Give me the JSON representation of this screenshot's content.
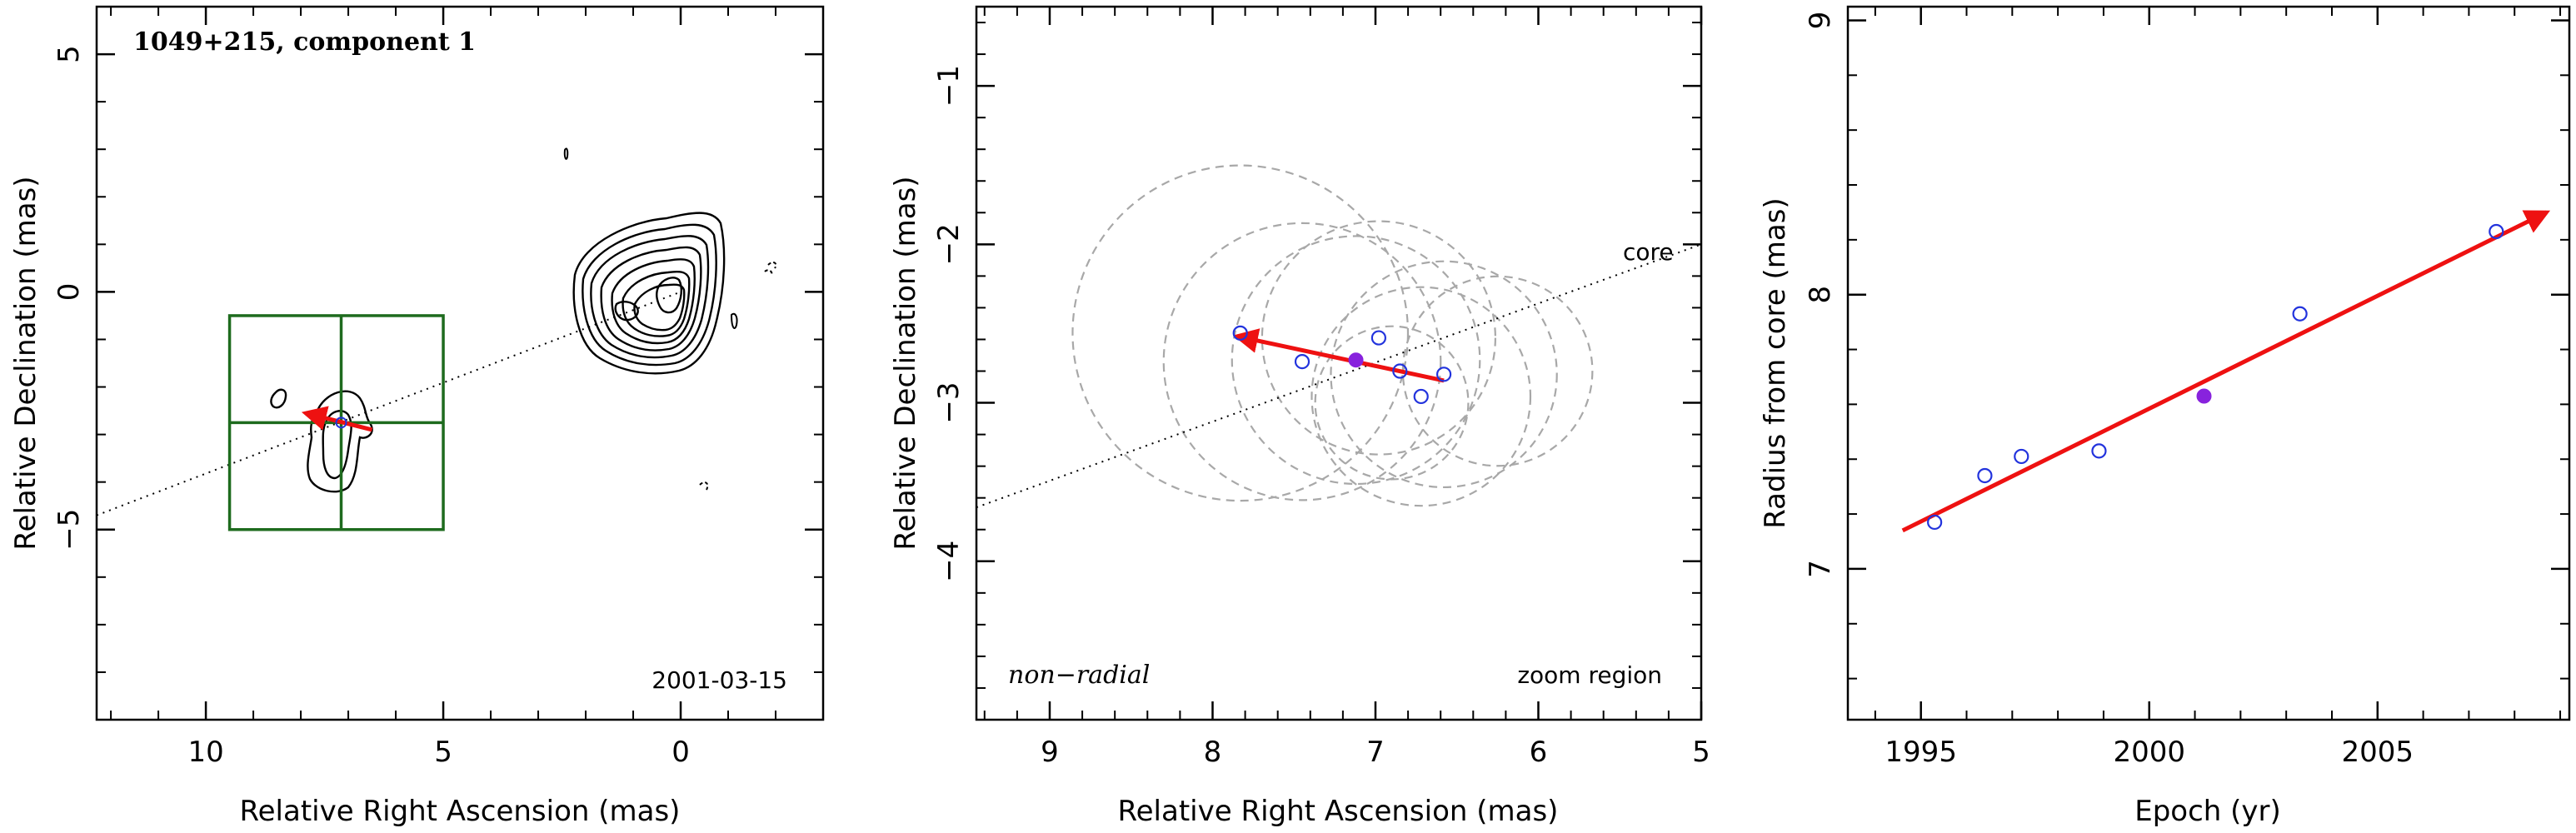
{
  "chart_data": [
    {
      "type": "contour-map",
      "title": "1049+215, component 1",
      "xlabel": "Relative Right Ascension (mas)",
      "ylabel": "Relative Declination (mas)",
      "xlim": [
        12.3,
        -3.0
      ],
      "ylim": [
        -9.0,
        6.0
      ],
      "xticks": [
        10,
        5,
        0
      ],
      "yticks": [
        5,
        0,
        -5
      ],
      "annotation": "2001-03-15",
      "direction_line": {
        "from": [
          12.3,
          -4.7
        ],
        "to": [
          0.0,
          0.0
        ]
      },
      "zoom_box": {
        "x": [
          9.5,
          5.0
        ],
        "y": [
          -5.0,
          -0.5
        ],
        "cross": [
          7.15,
          -2.75
        ]
      },
      "motion_arrow": {
        "from": [
          6.5,
          -2.9
        ],
        "to": [
          7.9,
          -2.55
        ]
      },
      "component_marker": [
        7.15,
        -2.75
      ],
      "colors": {
        "contour": "#000000",
        "box": "#1e6b1e",
        "arrow": "#ee1111"
      }
    },
    {
      "type": "scatter",
      "xlabel": "Relative Right Ascension (mas)",
      "ylabel": "Relative Declination (mas)",
      "xlim": [
        9.45,
        5.0
      ],
      "ylim": [
        -5.0,
        -0.5
      ],
      "xticks": [
        9,
        8,
        7,
        6,
        5
      ],
      "yticks": [
        -1,
        -2,
        -3,
        -4
      ],
      "label_left": "non−radial",
      "label_right": "zoom region",
      "core_label": "core",
      "points_open": [
        [
          7.83,
          -2.56
        ],
        [
          7.45,
          -2.74
        ],
        [
          6.98,
          -2.59
        ],
        [
          6.85,
          -2.8
        ],
        [
          6.72,
          -2.96
        ],
        [
          6.58,
          -2.82
        ]
      ],
      "point_filled": [
        7.12,
        -2.73
      ],
      "motion_arrow": {
        "from": [
          6.58,
          -2.86
        ],
        "to": [
          7.85,
          -2.58
        ]
      },
      "core_line": {
        "from": [
          9.45,
          -3.66
        ],
        "to": [
          5.0,
          -2.0
        ]
      },
      "error_circles": [
        {
          "cx": 7.83,
          "cy": -2.56,
          "r": 2.3
        },
        {
          "cx": 7.45,
          "cy": -2.74,
          "r": 1.9
        },
        {
          "cx": 6.98,
          "cy": -2.59,
          "r": 1.6
        },
        {
          "cx": 6.72,
          "cy": -2.96,
          "r": 1.5
        },
        {
          "cx": 6.58,
          "cy": -2.82,
          "r": 1.55
        },
        {
          "cx": 6.25,
          "cy": -2.8,
          "r": 1.3
        },
        {
          "cx": 6.9,
          "cy": -3.0,
          "r": 1.05
        },
        {
          "cx": 7.12,
          "cy": -2.73,
          "r": 1.7
        }
      ],
      "colors": {
        "open": "#2233dd",
        "filled": "#8822dd",
        "arrow": "#ee1111",
        "circles": "#a8a8a8"
      }
    },
    {
      "type": "scatter",
      "xlabel": "Epoch (yr)",
      "ylabel": "Radius from core (mas)",
      "xlim": [
        1993.4,
        2009.2
      ],
      "ylim": [
        6.45,
        9.05
      ],
      "xticks": [
        1995,
        2000,
        2005
      ],
      "yticks": [
        7,
        8,
        9
      ],
      "points_open": [
        [
          1995.3,
          7.17
        ],
        [
          1996.4,
          7.34
        ],
        [
          1997.2,
          7.41
        ],
        [
          1998.9,
          7.43
        ],
        [
          2003.3,
          7.93
        ],
        [
          2007.6,
          8.23
        ]
      ],
      "point_filled": [
        2001.2,
        7.63
      ],
      "fit_arrow": {
        "from": [
          1994.6,
          7.14
        ],
        "to": [
          2008.7,
          8.3
        ]
      },
      "colors": {
        "open": "#2233dd",
        "filled": "#8822dd",
        "arrow": "#ee1111"
      }
    }
  ]
}
